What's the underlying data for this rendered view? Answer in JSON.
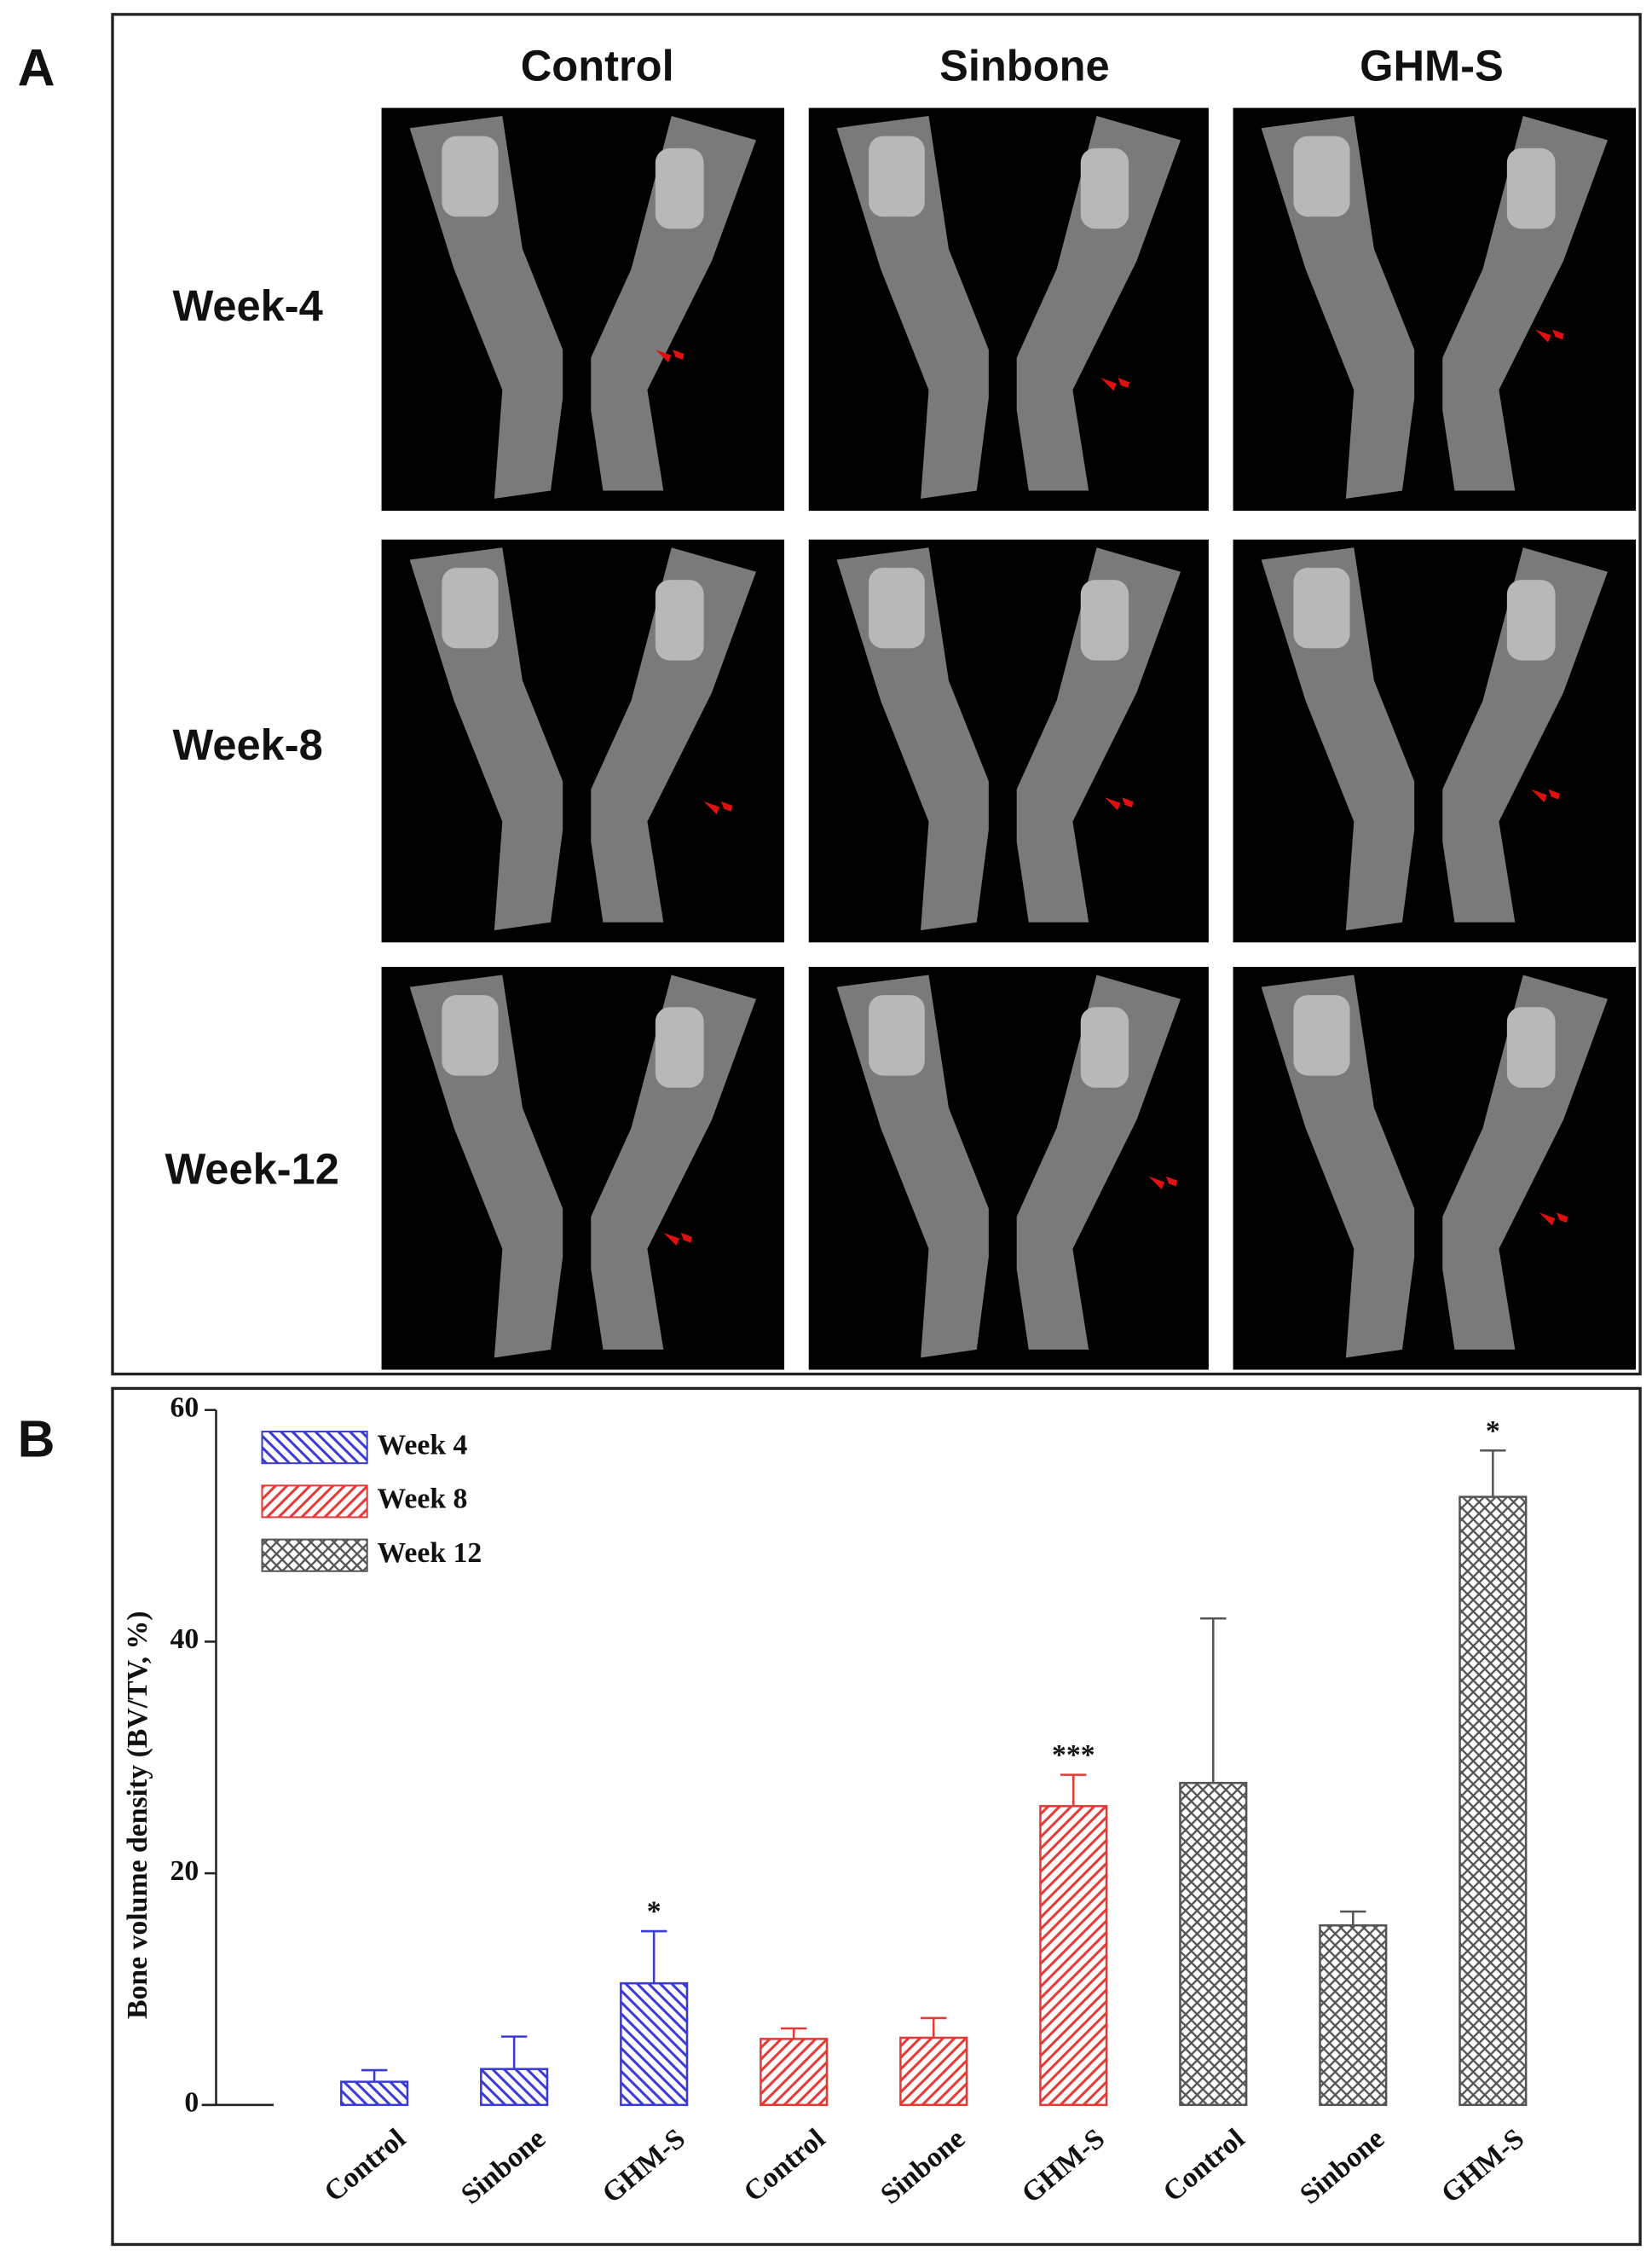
{
  "panel_a": {
    "label": "A",
    "columns": [
      "Control",
      "Sinbone",
      "GHM-S"
    ],
    "rows": [
      "Week-4",
      "Week-8",
      "Week-12"
    ]
  },
  "panel_b": {
    "label": "B"
  },
  "chart_data": {
    "type": "bar",
    "y_label": "Bone volume density (BV/TV, %)",
    "ylim": [
      0,
      60
    ],
    "yticks": [
      0,
      20,
      40,
      60
    ],
    "legend": "upper left",
    "series": [
      {
        "name": "Week 4",
        "color": "#3a3ad6",
        "pattern": "hatch-back",
        "categories": [
          "Control",
          "Sinbone",
          "GHM-S"
        ],
        "values": [
          2,
          3.1,
          10.5
        ],
        "errors": [
          1,
          2.8,
          4.5
        ],
        "annotations": [
          null,
          null,
          "*"
        ]
      },
      {
        "name": "Week 8",
        "color": "#e53935",
        "pattern": "hatch-forward",
        "categories": [
          "Control",
          "Sinbone",
          "GHM-S"
        ],
        "values": [
          5.7,
          5.8,
          25.8
        ],
        "errors": [
          0.9,
          1.7,
          2.7
        ],
        "annotations": [
          null,
          null,
          "***"
        ]
      },
      {
        "name": "Week 12",
        "color": "#555555",
        "pattern": "cross",
        "categories": [
          "Control",
          "Sinbone",
          "GHM-S"
        ],
        "values": [
          27.8,
          15.5,
          52.5
        ],
        "errors": [
          14.2,
          1.2,
          4
        ],
        "annotations": [
          null,
          null,
          "*"
        ]
      }
    ]
  }
}
